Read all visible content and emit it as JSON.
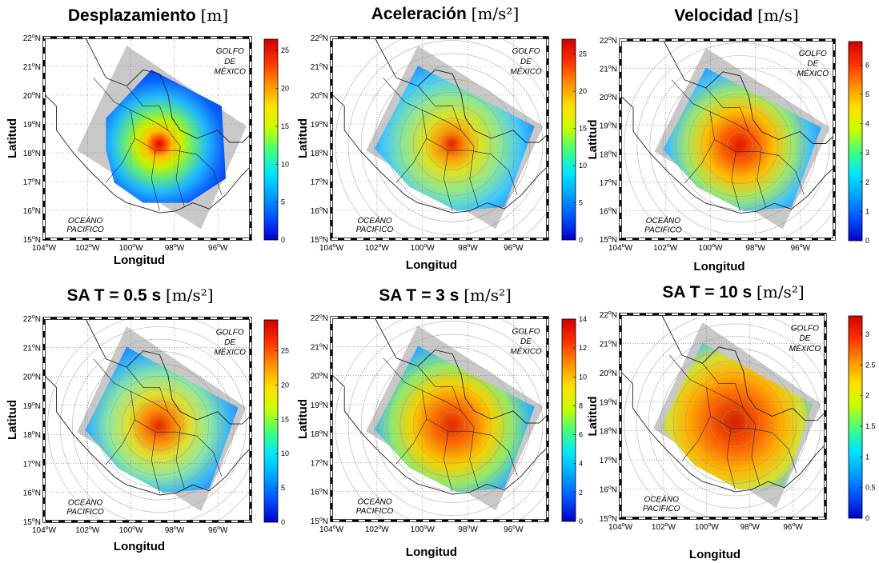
{
  "chart_data": [
    {
      "type": "heatmap",
      "title": "Desplazamiento",
      "unit": "[m]",
      "xlabel": "Longitud",
      "ylabel": "Latitud",
      "xlim": [
        -104,
        -94.5
      ],
      "ylim": [
        15,
        22
      ],
      "x_ticks": [
        {
          "base": "104",
          "sup": "o",
          "suffix": "W"
        },
        {
          "base": "102",
          "sup": "o",
          "suffix": "W"
        },
        {
          "base": "100",
          "sup": "o",
          "suffix": "W"
        },
        {
          "base": "98",
          "sup": "o",
          "suffix": "W"
        },
        {
          "base": "96",
          "sup": "o",
          "suffix": "W"
        }
      ],
      "y_ticks": [
        {
          "base": "15",
          "sup": "o",
          "suffix": "N"
        },
        {
          "base": "16",
          "sup": "o",
          "suffix": "N"
        },
        {
          "base": "17",
          "sup": "o",
          "suffix": "N"
        },
        {
          "base": "18",
          "sup": "o",
          "suffix": "N"
        },
        {
          "base": "19",
          "sup": "o",
          "suffix": "N"
        },
        {
          "base": "20",
          "sup": "o",
          "suffix": "N"
        },
        {
          "base": "21",
          "sup": "o",
          "suffix": "N"
        },
        {
          "base": "22",
          "sup": "o",
          "suffix": "N"
        }
      ],
      "colorbar": {
        "min": 0,
        "max": 26.5,
        "ticks": [
          "0",
          "5",
          "10",
          "15",
          "20",
          "25"
        ]
      },
      "epicenter": {
        "lon": -98.7,
        "lat": 18.3
      },
      "peak_value": 26,
      "annotations": [
        "GOLFO",
        "DE",
        "MÉXICO",
        "OCEÁNO",
        "PACIFICO"
      ]
    },
    {
      "type": "heatmap",
      "title": "Aceleración",
      "unit": "[m/s²]",
      "xlabel": "Longitud",
      "ylabel": "Latitud",
      "xlim": [
        -104,
        -94.5
      ],
      "ylim": [
        15,
        22
      ],
      "x_ticks": [
        {
          "base": "104",
          "sup": "o",
          "suffix": "W"
        },
        {
          "base": "102",
          "sup": "o",
          "suffix": "W"
        },
        {
          "base": "100",
          "sup": "o",
          "suffix": "W"
        },
        {
          "base": "98",
          "sup": "o",
          "suffix": "W"
        },
        {
          "base": "96",
          "sup": "o",
          "suffix": "W"
        }
      ],
      "y_ticks": [
        {
          "base": "15",
          "sup": "o",
          "suffix": "N"
        },
        {
          "base": "16",
          "sup": "o",
          "suffix": "N"
        },
        {
          "base": "17",
          "sup": "o",
          "suffix": "N"
        },
        {
          "base": "18",
          "sup": "o",
          "suffix": "N"
        },
        {
          "base": "19",
          "sup": "o",
          "suffix": "N"
        },
        {
          "base": "20",
          "sup": "o",
          "suffix": "N"
        },
        {
          "base": "21",
          "sup": "o",
          "suffix": "N"
        },
        {
          "base": "22",
          "sup": "o",
          "suffix": "N"
        }
      ],
      "colorbar": {
        "min": 0,
        "max": 27,
        "ticks": [
          "0",
          "5",
          "10",
          "15",
          "20",
          "25"
        ]
      },
      "epicenter": {
        "lon": -98.7,
        "lat": 18.3
      },
      "peak_value": 26,
      "annotations": [
        "GOLFO",
        "DE",
        "MÉXICO",
        "OCEÁNO",
        "PACIFICO"
      ]
    },
    {
      "type": "heatmap",
      "title": "Velocidad",
      "unit": "[m/s]",
      "xlabel": "Longitud",
      "ylabel": "Latitud",
      "xlim": [
        -104,
        -94.5
      ],
      "ylim": [
        15,
        22
      ],
      "x_ticks": [
        {
          "base": "104",
          "sup": "o",
          "suffix": "W"
        },
        {
          "base": "102",
          "sup": "o",
          "suffix": "W"
        },
        {
          "base": "100",
          "sup": "o",
          "suffix": "W"
        },
        {
          "base": "98",
          "sup": "o",
          "suffix": "W"
        },
        {
          "base": "96",
          "sup": "o",
          "suffix": "W"
        }
      ],
      "y_ticks": [
        {
          "base": "15",
          "sup": "o",
          "suffix": "N"
        },
        {
          "base": "16",
          "sup": "o",
          "suffix": "N"
        },
        {
          "base": "17",
          "sup": "o",
          "suffix": "N"
        },
        {
          "base": "18",
          "sup": "o",
          "suffix": "N"
        },
        {
          "base": "19",
          "sup": "o",
          "suffix": "N"
        },
        {
          "base": "20",
          "sup": "o",
          "suffix": "N"
        },
        {
          "base": "21",
          "sup": "o",
          "suffix": "N"
        },
        {
          "base": "22",
          "sup": "o",
          "suffix": "N"
        }
      ],
      "colorbar": {
        "min": 0,
        "max": 6.8,
        "ticks": [
          "0",
          "1",
          "2",
          "3",
          "4",
          "5",
          "6"
        ]
      },
      "epicenter": {
        "lon": -98.7,
        "lat": 18.3
      },
      "peak_value": 6.5,
      "annotations": [
        "GOLFO",
        "DE",
        "MÉXICO",
        "OCEÁNO",
        "PACIFICO"
      ]
    },
    {
      "type": "heatmap",
      "title": "SA T = 0.5 s",
      "unit": "[m/s²]",
      "xlabel": "Longitud",
      "ylabel": "Latitud",
      "xlim": [
        -104,
        -94.5
      ],
      "ylim": [
        15,
        22
      ],
      "x_ticks": [
        {
          "base": "104",
          "sup": "o",
          "suffix": "W"
        },
        {
          "base": "102",
          "sup": "o",
          "suffix": "W"
        },
        {
          "base": "100",
          "sup": "o",
          "suffix": "W"
        },
        {
          "base": "98",
          "sup": "o",
          "suffix": "W"
        },
        {
          "base": "96",
          "sup": "o",
          "suffix": "W"
        }
      ],
      "y_ticks": [
        {
          "base": "15",
          "sup": "o",
          "suffix": "N"
        },
        {
          "base": "16",
          "sup": "o",
          "suffix": "N"
        },
        {
          "base": "17",
          "sup": "o",
          "suffix": "N"
        },
        {
          "base": "18",
          "sup": "o",
          "suffix": "N"
        },
        {
          "base": "19",
          "sup": "o",
          "suffix": "N"
        },
        {
          "base": "20",
          "sup": "o",
          "suffix": "N"
        },
        {
          "base": "21",
          "sup": "o",
          "suffix": "N"
        },
        {
          "base": "22",
          "sup": "o",
          "suffix": "N"
        }
      ],
      "colorbar": {
        "min": 0,
        "max": 29.5,
        "ticks": [
          "0",
          "5",
          "10",
          "15",
          "20",
          "25"
        ]
      },
      "epicenter": {
        "lon": -98.7,
        "lat": 18.3
      },
      "peak_value": 28,
      "annotations": [
        "GOLFO",
        "DE",
        "MÉXICO",
        "OCEÁNO",
        "PACIFICO"
      ]
    },
    {
      "type": "heatmap",
      "title": "SA T = 3 s",
      "unit": "[m/s²]",
      "xlabel": "Longitud",
      "ylabel": "Latitud",
      "xlim": [
        -104,
        -94.5
      ],
      "ylim": [
        15,
        22
      ],
      "x_ticks": [
        {
          "base": "104",
          "sup": "o",
          "suffix": "W"
        },
        {
          "base": "102",
          "sup": "o",
          "suffix": "W"
        },
        {
          "base": "100",
          "sup": "o",
          "suffix": "W"
        },
        {
          "base": "98",
          "sup": "o",
          "suffix": "W"
        },
        {
          "base": "96",
          "sup": "o",
          "suffix": "W"
        }
      ],
      "y_ticks": [
        {
          "base": "15",
          "sup": "o",
          "suffix": "N"
        },
        {
          "base": "16",
          "sup": "o",
          "suffix": "N"
        },
        {
          "base": "17",
          "sup": "o",
          "suffix": "N"
        },
        {
          "base": "18",
          "sup": "o",
          "suffix": "N"
        },
        {
          "base": "19",
          "sup": "o",
          "suffix": "N"
        },
        {
          "base": "20",
          "sup": "o",
          "suffix": "N"
        },
        {
          "base": "21",
          "sup": "o",
          "suffix": "N"
        },
        {
          "base": "22",
          "sup": "o",
          "suffix": "N"
        }
      ],
      "colorbar": {
        "min": 0,
        "max": 14,
        "ticks": [
          "0",
          "2",
          "4",
          "6",
          "8",
          "10",
          "12",
          "14"
        ]
      },
      "epicenter": {
        "lon": -98.7,
        "lat": 18.3
      },
      "peak_value": 13.5,
      "annotations": [
        "GOLFO",
        "DE",
        "MÉXICO",
        "OCEÁNO",
        "PACIFICO"
      ]
    },
    {
      "type": "heatmap",
      "title": "SA T = 10 s",
      "unit": "[m/s²]",
      "xlabel": "Longitud",
      "ylabel": "Latitud",
      "xlim": [
        -104,
        -94.5
      ],
      "ylim": [
        15,
        22
      ],
      "x_ticks": [
        {
          "base": "104",
          "sup": "o",
          "suffix": "W"
        },
        {
          "base": "102",
          "sup": "o",
          "suffix": "W"
        },
        {
          "base": "100",
          "sup": "o",
          "suffix": "W"
        },
        {
          "base": "98",
          "sup": "o",
          "suffix": "W"
        },
        {
          "base": "96",
          "sup": "o",
          "suffix": "W"
        }
      ],
      "y_ticks": [
        {
          "base": "15",
          "sup": "o",
          "suffix": "N"
        },
        {
          "base": "16",
          "sup": "o",
          "suffix": "N"
        },
        {
          "base": "17",
          "sup": "o",
          "suffix": "N"
        },
        {
          "base": "18",
          "sup": "o",
          "suffix": "N"
        },
        {
          "base": "19",
          "sup": "o",
          "suffix": "N"
        },
        {
          "base": "20",
          "sup": "o",
          "suffix": "N"
        },
        {
          "base": "21",
          "sup": "o",
          "suffix": "N"
        },
        {
          "base": "22",
          "sup": "o",
          "suffix": "N"
        }
      ],
      "colorbar": {
        "min": 0,
        "max": 3.3,
        "ticks": [
          "0",
          "0.5",
          "1",
          "1.5",
          "2",
          "2.5",
          "3"
        ]
      },
      "epicenter": {
        "lon": -98.7,
        "lat": 18.3
      },
      "peak_value": 3.2,
      "annotations": [
        "GOLFO",
        "DE",
        "MÉXICO",
        "OCEÁNO",
        "PACIFICO"
      ]
    }
  ],
  "colors": {
    "colormap": [
      "#0000c8",
      "#0050ff",
      "#00a0ff",
      "#00e6ff",
      "#40ff80",
      "#c8ff00",
      "#ffe000",
      "#ff9000",
      "#ff3000",
      "#d00000"
    ],
    "mask": "#c8c8c8",
    "outside": "#ffffff",
    "border": "#000000"
  }
}
